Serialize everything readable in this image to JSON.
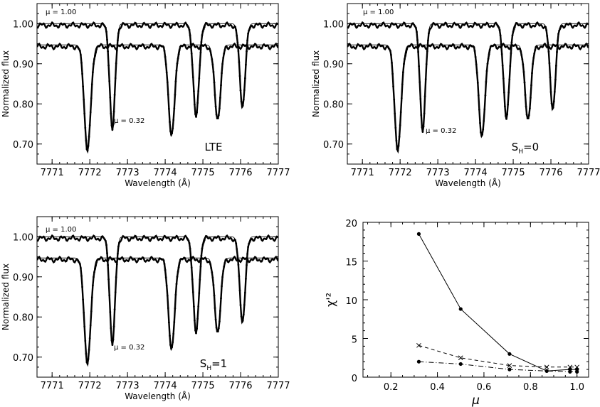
{
  "chart_data": [
    {
      "type": "line",
      "panel_label": "LTE",
      "xlabel": "Wavelength (Å)",
      "ylabel": "Normalized flux",
      "xlim": [
        7770.6,
        7777
      ],
      "ylim": [
        0.65,
        1.05
      ],
      "x_ticks": [
        "7771",
        "7772",
        "7773",
        "7774",
        "7775",
        "7776",
        "7777"
      ],
      "y_ticks": [
        "0.70",
        "0.80",
        "0.90",
        "1.00"
      ],
      "annotations": [
        {
          "text": "μ = 1.00"
        },
        {
          "text": "μ = 0.32"
        }
      ],
      "series": [
        {
          "mu": 1.0,
          "continuum": 1.0,
          "lines": [
            {
              "center": 7772.6,
              "depth": 0.26,
              "width": 0.07
            },
            {
              "center": 7774.82,
              "depth": 0.23,
              "width": 0.075
            },
            {
              "center": 7776.05,
              "depth": 0.2,
              "width": 0.075
            }
          ]
        },
        {
          "mu": 0.32,
          "continuum": 0.947,
          "lines": [
            {
              "center": 7771.94,
              "depth": 0.258,
              "width": 0.085
            },
            {
              "center": 7774.17,
              "depth": 0.225,
              "width": 0.08
            },
            {
              "center": 7775.39,
              "depth": 0.18,
              "width": 0.08
            }
          ]
        }
      ]
    },
    {
      "type": "line",
      "panel_label": "S_H=0",
      "xlabel": "Wavelength (Å)",
      "ylabel": "Normalized flux",
      "xlim": [
        7770.6,
        7777
      ],
      "ylim": [
        0.65,
        1.05
      ],
      "x_ticks": [
        "7771",
        "7772",
        "7773",
        "7774",
        "7775",
        "7776",
        "7777"
      ],
      "y_ticks": [
        "0.70",
        "0.80",
        "0.90",
        "1.00"
      ],
      "annotations": [
        {
          "text": "μ = 1.00"
        },
        {
          "text": "μ = 0.32"
        }
      ],
      "series": [
        {
          "mu": 1.0,
          "continuum": 1.0,
          "lines": [
            {
              "center": 7772.6,
              "depth": 0.265,
              "width": 0.07
            },
            {
              "center": 7774.82,
              "depth": 0.235,
              "width": 0.075
            },
            {
              "center": 7776.05,
              "depth": 0.205,
              "width": 0.075
            }
          ]
        },
        {
          "mu": 0.32,
          "continuum": 0.947,
          "lines": [
            {
              "center": 7771.94,
              "depth": 0.258,
              "width": 0.085
            },
            {
              "center": 7774.17,
              "depth": 0.228,
              "width": 0.08
            },
            {
              "center": 7775.39,
              "depth": 0.18,
              "width": 0.08
            }
          ]
        }
      ]
    },
    {
      "type": "line",
      "panel_label": "S_H=1",
      "xlabel": "Wavelength (Å)",
      "ylabel": "Normalized flux",
      "xlim": [
        7770.6,
        7777
      ],
      "ylim": [
        0.65,
        1.05
      ],
      "x_ticks": [
        "7771",
        "7772",
        "7773",
        "7774",
        "7775",
        "7776",
        "7777"
      ],
      "y_ticks": [
        "0.70",
        "0.80",
        "0.90",
        "1.00"
      ],
      "annotations": [
        {
          "text": "μ = 1.00"
        },
        {
          "text": "μ = 0.32"
        }
      ],
      "series": [
        {
          "mu": 1.0,
          "continuum": 1.0,
          "lines": [
            {
              "center": 7772.6,
              "depth": 0.265,
              "width": 0.07
            },
            {
              "center": 7774.82,
              "depth": 0.238,
              "width": 0.075
            },
            {
              "center": 7776.05,
              "depth": 0.205,
              "width": 0.075
            }
          ]
        },
        {
          "mu": 0.32,
          "continuum": 0.947,
          "lines": [
            {
              "center": 7771.94,
              "depth": 0.258,
              "width": 0.085
            },
            {
              "center": 7774.17,
              "depth": 0.227,
              "width": 0.08
            },
            {
              "center": 7775.39,
              "depth": 0.18,
              "width": 0.08
            }
          ]
        }
      ]
    },
    {
      "type": "line",
      "xlabel": "μ",
      "ylabel": "χ'²",
      "xlim": [
        0.08,
        1.05
      ],
      "ylim": [
        0,
        20
      ],
      "x_ticks": [
        "0.2",
        "0.4",
        "0.6",
        "0.8",
        "1.0"
      ],
      "y_ticks": [
        "0",
        "5",
        "10",
        "15",
        "20"
      ],
      "series": [
        {
          "style": "solid",
          "marker": "dot",
          "x": [
            0.32,
            0.5,
            0.71,
            0.87,
            0.97,
            1.0
          ],
          "y": [
            18.5,
            8.8,
            3.0,
            0.8,
            1.0,
            1.0
          ]
        },
        {
          "style": "dashed",
          "marker": "cross",
          "x": [
            0.32,
            0.5,
            0.71,
            0.87,
            0.97,
            1.0
          ],
          "y": [
            4.1,
            2.5,
            1.5,
            1.3,
            1.3,
            1.3
          ]
        },
        {
          "style": "dashdot",
          "marker": "dot",
          "x": [
            0.32,
            0.5,
            0.71,
            0.87,
            0.97,
            1.0
          ],
          "y": [
            2.0,
            1.7,
            1.0,
            0.8,
            0.7,
            0.7
          ]
        }
      ]
    }
  ]
}
